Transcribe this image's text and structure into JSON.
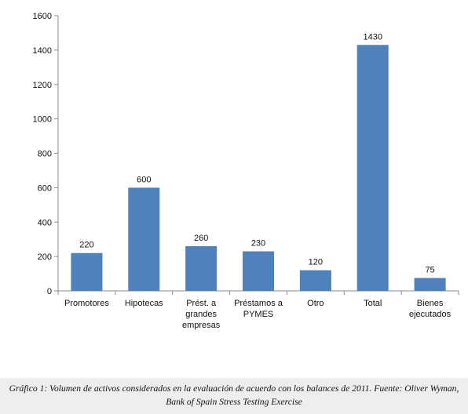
{
  "chart_data": {
    "type": "bar",
    "categories": [
      [
        "Promotores"
      ],
      [
        "Hipotecas"
      ],
      [
        "Prést. a",
        "grandes",
        "empresas"
      ],
      [
        "Préstamos a",
        "PYMES"
      ],
      [
        "Otro"
      ],
      [
        "Total"
      ],
      [
        "Bienes",
        "ejecutados"
      ]
    ],
    "values": [
      220,
      600,
      260,
      230,
      120,
      1430,
      75
    ],
    "ylim": [
      0,
      1600
    ],
    "yticks": [
      0,
      200,
      400,
      600,
      800,
      1000,
      1200,
      1400,
      1600
    ],
    "grid": false,
    "data_labels": true,
    "bar_color": "#4f81bd",
    "title": "",
    "xlabel": "",
    "ylabel": ""
  },
  "caption": "Gráfico 1: Volumen de activos considerados en la evaluación de acuerdo con los balances de 2011. Fuente: Oliver Wyman, Bank of Spain Stress Testing Exercise"
}
